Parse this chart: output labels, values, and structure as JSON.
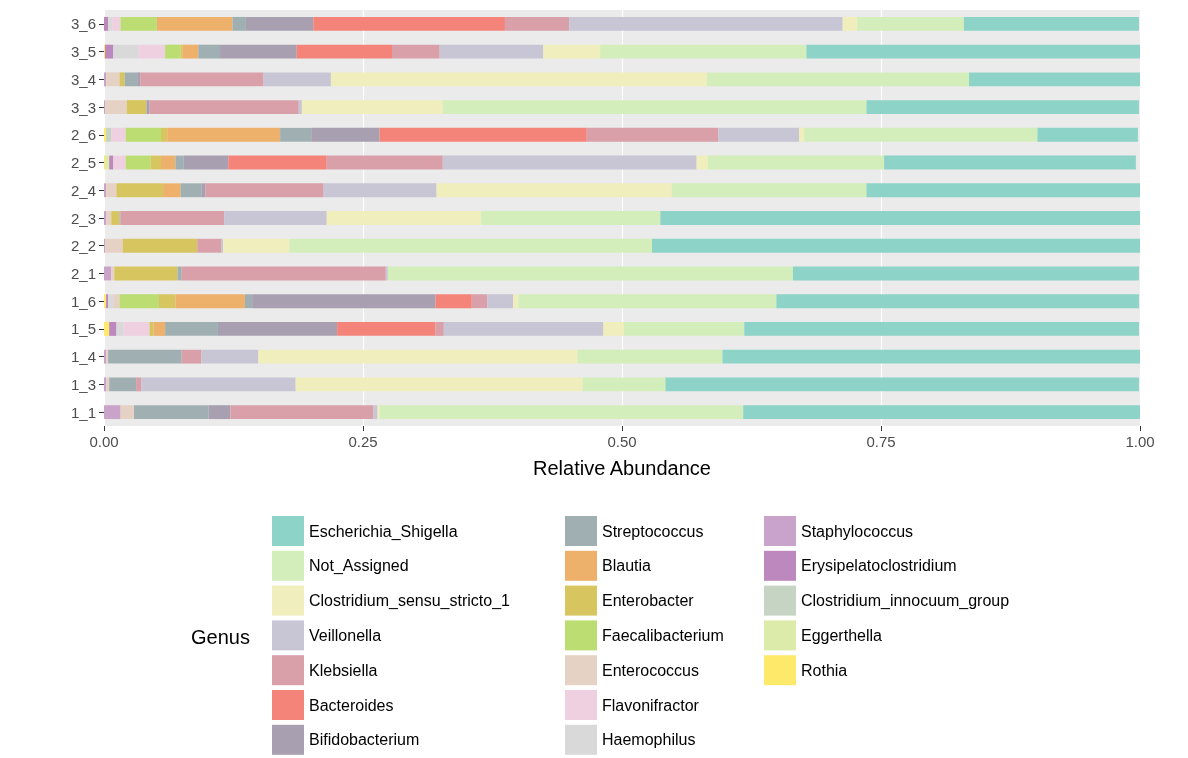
{
  "chart_data": {
    "type": "bar",
    "orientation": "horizontal",
    "stacked": true,
    "xlabel": "Relative Abundance",
    "legend_title": "Genus",
    "legend": "bottom",
    "grid": "x",
    "categories": [
      "3_6",
      "3_5",
      "3_4",
      "3_3",
      "2_6",
      "2_5",
      "2_4",
      "2_3",
      "2_2",
      "2_1",
      "1_6",
      "1_5",
      "1_4",
      "1_3",
      "1_1"
    ],
    "xlim": [
      0,
      1
    ],
    "xticks": [
      {
        "value": 0,
        "label": "0.00"
      },
      {
        "value": 0.25,
        "label": "0.25"
      },
      {
        "value": 0.5,
        "label": "0.50"
      },
      {
        "value": 0.75,
        "label": "0.75"
      },
      {
        "value": 1,
        "label": "1.00"
      }
    ],
    "series": [
      {
        "name": "Rothia",
        "color": "#ffe96a",
        "values": [
          0,
          0.001,
          0,
          0,
          0.002,
          0.001,
          0,
          0,
          0,
          0,
          0.002,
          0.005,
          0,
          0,
          0
        ]
      },
      {
        "name": "Eggerthella",
        "color": "#dcebaa",
        "values": [
          0,
          0,
          0,
          0,
          0,
          0.004,
          0,
          0,
          0,
          0,
          0,
          0,
          0,
          0,
          0
        ]
      },
      {
        "name": "Clostridium_innocuum_group",
        "color": "#c6d5c3",
        "values": [
          0,
          0,
          0,
          0,
          0.005,
          0,
          0,
          0,
          0,
          0,
          0,
          0,
          0,
          0,
          0
        ]
      },
      {
        "name": "Erysipelatoclostridium",
        "color": "#bd88be",
        "values": [
          0.004,
          0.008,
          0,
          0,
          0,
          0.004,
          0,
          0,
          0,
          0,
          0.002,
          0.007,
          0,
          0,
          0
        ]
      },
      {
        "name": "Staphylococcus",
        "color": "#c9a3c9",
        "values": [
          0,
          0,
          0.002,
          0.001,
          0,
          0,
          0.002,
          0.002,
          0.001,
          0.007,
          0,
          0,
          0.002,
          0.002,
          0.016
        ]
      },
      {
        "name": "Haemophilus",
        "color": "#d9d9d9",
        "values": [
          0.004,
          0.024,
          0,
          0,
          0,
          0,
          0,
          0,
          0,
          0,
          0.005,
          0.007,
          0,
          0,
          0
        ]
      },
      {
        "name": "Flavonifractor",
        "color": "#eed0e0",
        "values": [
          0.008,
          0.026,
          0,
          0,
          0.014,
          0.012,
          0,
          0,
          0,
          0,
          0,
          0.025,
          0,
          0,
          0
        ]
      },
      {
        "name": "Enterococcus",
        "color": "#e6d2c5",
        "values": [
          0,
          0,
          0.013,
          0.021,
          0,
          0,
          0.01,
          0.005,
          0.017,
          0.003,
          0.006,
          0,
          0.002,
          0.003,
          0.013
        ]
      },
      {
        "name": "Faecalibacterium",
        "color": "#bbdd71",
        "values": [
          0.035,
          0.015,
          0,
          0,
          0.034,
          0.024,
          0,
          0,
          0,
          0,
          0.038,
          0,
          0,
          0,
          0
        ]
      },
      {
        "name": "Enterobacter",
        "color": "#d7c660",
        "values": [
          0,
          0.002,
          0.005,
          0.019,
          0.006,
          0.01,
          0.045,
          0.008,
          0.072,
          0.061,
          0.016,
          0.004,
          0,
          0,
          0
        ]
      },
      {
        "name": "Blautia",
        "color": "#eeb16b",
        "values": [
          0.073,
          0.015,
          0,
          0,
          0.109,
          0.014,
          0.017,
          0,
          0,
          0,
          0.067,
          0.011,
          0,
          0,
          0
        ]
      },
      {
        "name": "Streptococcus",
        "color": "#a0b0b2",
        "values": [
          0.013,
          0.021,
          0.012,
          0,
          0.03,
          0.008,
          0.02,
          0.001,
          0,
          0.004,
          0.007,
          0.051,
          0.071,
          0.026,
          0.072
        ]
      },
      {
        "name": "Bifidobacterium",
        "color": "#a89fb0",
        "values": [
          0.065,
          0.074,
          0.003,
          0.003,
          0.066,
          0.043,
          0.004,
          0,
          0,
          0,
          0.177,
          0.115,
          0,
          0,
          0.021
        ]
      },
      {
        "name": "Bacteroides",
        "color": "#f4837a",
        "values": [
          0.185,
          0.092,
          0,
          0,
          0.2,
          0.095,
          0,
          0,
          0,
          0,
          0.035,
          0.095,
          0,
          0,
          0
        ]
      },
      {
        "name": "Klebsiella",
        "color": "#d9a0aa",
        "values": [
          0.062,
          0.046,
          0.119,
          0.144,
          0.127,
          0.112,
          0.114,
          0.1,
          0.023,
          0.197,
          0.015,
          0.008,
          0.019,
          0.005,
          0.138
        ]
      },
      {
        "name": "Veillonella",
        "color": "#c8c5d5",
        "values": [
          0.264,
          0.1,
          0.065,
          0.003,
          0.078,
          0.245,
          0.109,
          0.099,
          0.002,
          0.002,
          0.025,
          0.154,
          0.055,
          0.149,
          0.004
        ]
      },
      {
        "name": "Clostridium_sensu_stricto_1",
        "color": "#f0eebc",
        "values": [
          0.014,
          0.055,
          0.363,
          0.136,
          0.005,
          0.011,
          0.227,
          0.149,
          0.064,
          0,
          0.005,
          0.02,
          0.308,
          0.277,
          0.002
        ]
      },
      {
        "name": "Not_Assigned",
        "color": "#d4eebb",
        "values": [
          0.103,
          0.199,
          0.253,
          0.409,
          0.225,
          0.17,
          0.188,
          0.173,
          0.35,
          0.391,
          0.249,
          0.116,
          0.14,
          0.08,
          0.351
        ]
      },
      {
        "name": "Escherichia_Shigella",
        "color": "#8dd3c7",
        "values": [
          0.169,
          0.322,
          0.165,
          0.263,
          0.097,
          0.243,
          0.264,
          0.463,
          0.471,
          0.334,
          0.35,
          0.381,
          0.403,
          0.457,
          0.383
        ]
      }
    ]
  }
}
